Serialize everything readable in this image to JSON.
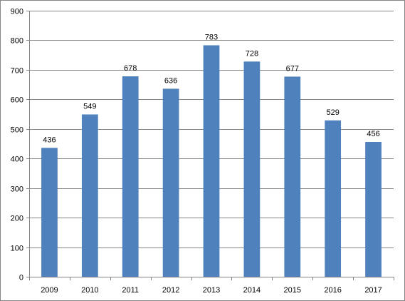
{
  "chart_data": {
    "type": "bar",
    "title": "",
    "xlabel": "",
    "ylabel": "",
    "categories": [
      "2009",
      "2010",
      "2011",
      "2012",
      "2013",
      "2014",
      "2015",
      "2016",
      "2017"
    ],
    "values": [
      436,
      549,
      678,
      636,
      783,
      728,
      677,
      529,
      456
    ],
    "data_labels": [
      "436",
      "549",
      "678",
      "636",
      "783",
      "728",
      "677",
      "529",
      "456"
    ],
    "ylim": [
      0,
      900
    ],
    "yticks": [
      "0",
      "100",
      "200",
      "300",
      "400",
      "500",
      "600",
      "700",
      "800",
      "900"
    ],
    "grid": true,
    "legend": "none",
    "colors": {
      "bar": "#4F81BD",
      "grid": "#868686",
      "axis": "#868686",
      "border": "#868686"
    }
  }
}
